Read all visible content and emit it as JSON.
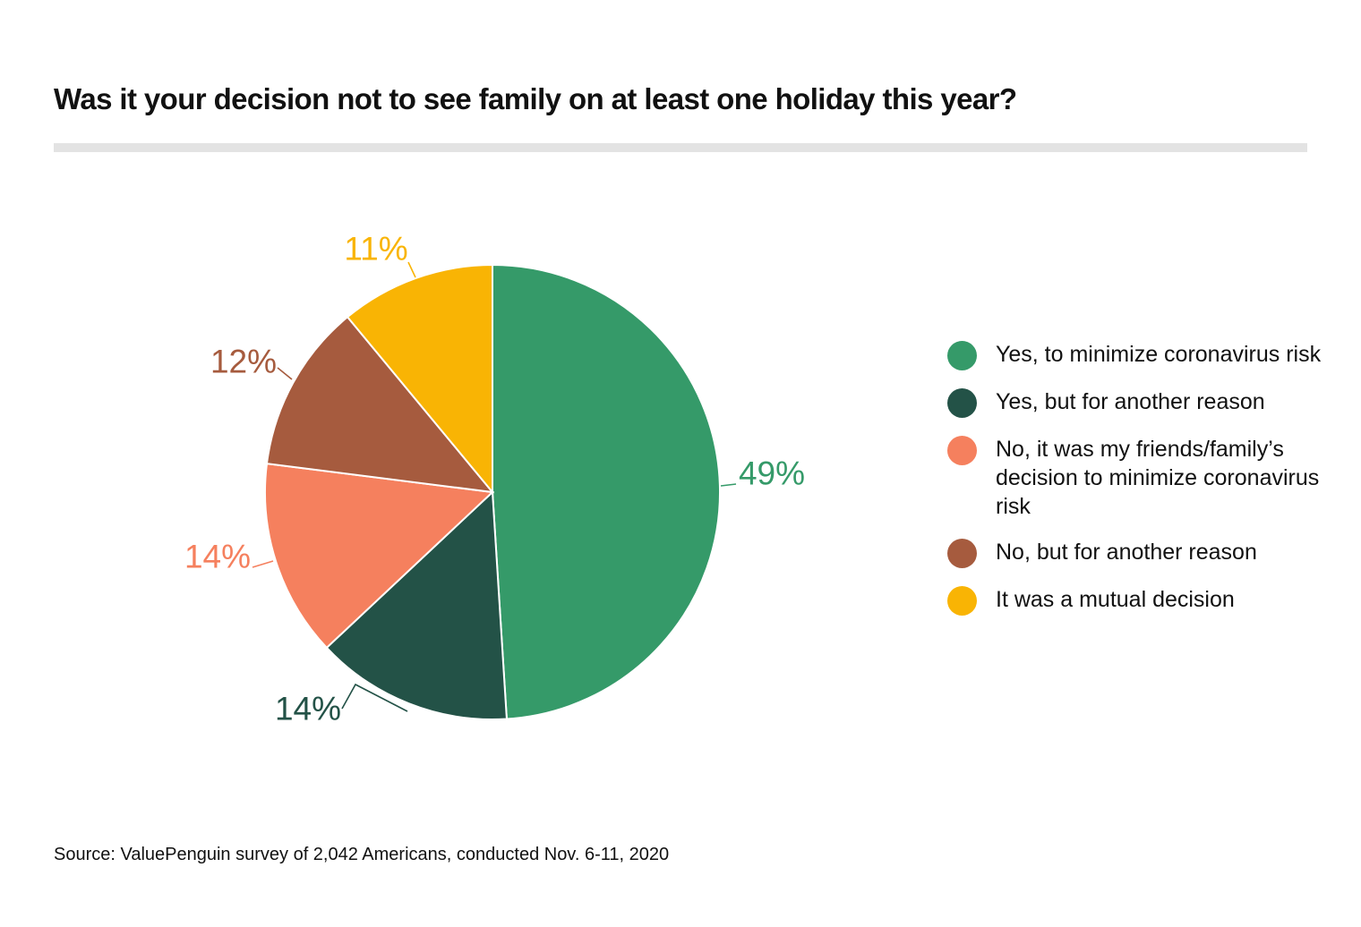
{
  "chart_data": {
    "type": "pie",
    "title": "Was it your decision not to see family on at least one holiday this year?",
    "source": "Source: ValuePenguin survey of 2,042 Americans, conducted Nov. 6-11, 2020",
    "legend_position": "right",
    "slices": [
      {
        "label": "Yes, to minimize coronavirus risk",
        "value": 49,
        "display": "49%",
        "color": "#359a69"
      },
      {
        "label": "Yes, but for another reason",
        "value": 14,
        "display": "14%",
        "color": "#235247"
      },
      {
        "label": "No, it was my friends/family’s decision to minimize coronavirus risk",
        "value": 14,
        "display": "14%",
        "color": "#f5805e"
      },
      {
        "label": "No, but for another reason",
        "value": 12,
        "display": "12%",
        "color": "#a65b3e"
      },
      {
        "label": "It was a mutual decision",
        "value": 11,
        "display": "11%",
        "color": "#f9b404"
      }
    ]
  }
}
